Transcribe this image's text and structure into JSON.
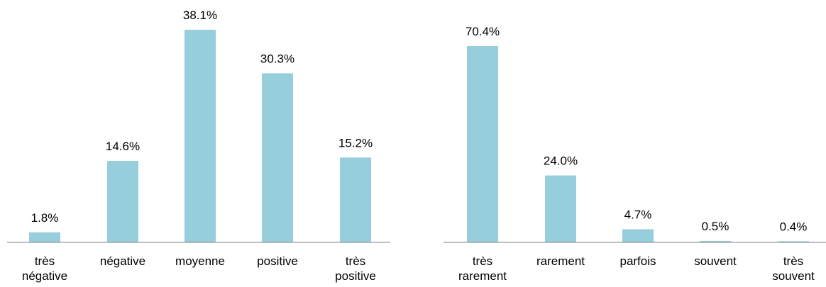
{
  "bar_color": "#96CEDC",
  "axis_color": "#808080",
  "chart_data": [
    {
      "type": "bar",
      "title": "",
      "xlabel": "",
      "ylabel": "",
      "ylim": [
        0,
        38.1
      ],
      "grid": false,
      "categories": [
        [
          "très",
          "négative"
        ],
        [
          "négative"
        ],
        [
          "moyenne"
        ],
        [
          "positive"
        ],
        [
          "très",
          "positive"
        ]
      ],
      "values": [
        1.8,
        14.6,
        38.1,
        30.3,
        15.2
      ],
      "data_labels": [
        "1.8%",
        "14.6%",
        "38.1%",
        "30.3%",
        "15.2%"
      ]
    },
    {
      "type": "bar",
      "title": "",
      "xlabel": "",
      "ylabel": "",
      "ylim": [
        0,
        70.4
      ],
      "grid": false,
      "categories": [
        [
          "très",
          "rarement"
        ],
        [
          "rarement"
        ],
        [
          "parfois"
        ],
        [
          "souvent"
        ],
        [
          "très",
          "souvent"
        ]
      ],
      "values": [
        70.4,
        24.0,
        4.7,
        0.5,
        0.4
      ],
      "data_labels": [
        "70.4%",
        "24.0%",
        "4.7%",
        "0.5%",
        "0.4%"
      ]
    }
  ]
}
